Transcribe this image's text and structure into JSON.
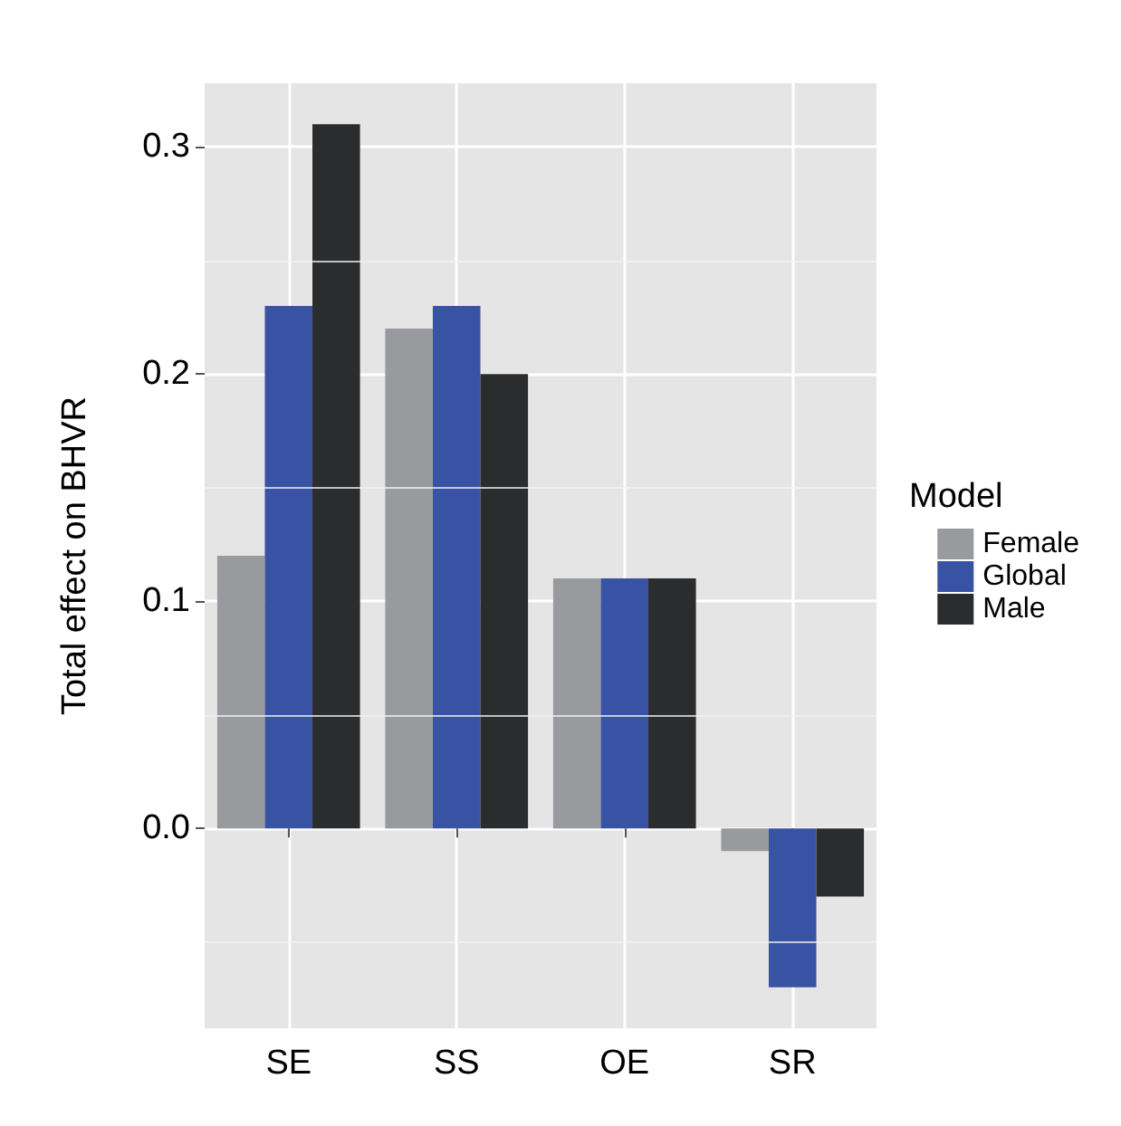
{
  "chart_data": {
    "type": "bar",
    "ylabel": "Total effect on BHVR",
    "legend_title": "Model",
    "categories": [
      "SE",
      "SS",
      "OE",
      "SR"
    ],
    "series": [
      {
        "name": "Female",
        "color": "#999a9e",
        "values": [
          0.12,
          0.22,
          0.11,
          -0.01
        ]
      },
      {
        "name": "Global",
        "color": "#3953a4",
        "values": [
          0.23,
          0.23,
          0.11,
          -0.07
        ]
      },
      {
        "name": "Male",
        "color": "#2b2c2e",
        "values": [
          0.31,
          0.2,
          0.11,
          -0.03
        ]
      }
    ],
    "ylim": [
      -0.088,
      0.328
    ],
    "yticks": [
      {
        "value": 0,
        "label": "0.0"
      },
      0.1,
      0.2,
      0.3
    ],
    "grid": true,
    "legend": "right"
  }
}
